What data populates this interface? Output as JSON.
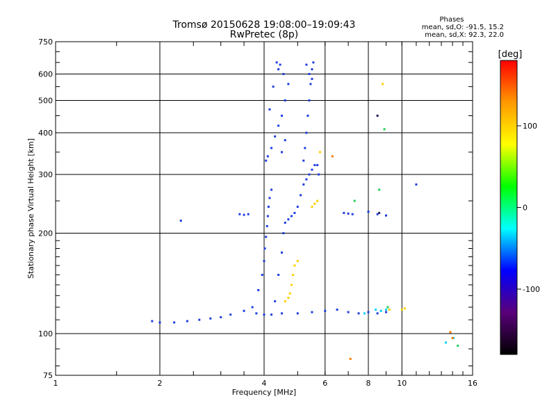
{
  "chart_data": {
    "type": "scatter",
    "title": "Tromsø 20150628 19:08:00–19:09:43",
    "subtitle": "RwPretec (8p)",
    "xlabel": "Frequency [MHz]",
    "ylabel": "Stationary phase Virtual Height [km]",
    "x_scale": "log",
    "y_scale": "log",
    "xlim": [
      1,
      16
    ],
    "ylim": [
      75,
      750
    ],
    "x_ticks": [
      1,
      2,
      4,
      6,
      8,
      10,
      16
    ],
    "y_ticks": [
      75,
      100,
      200,
      300,
      400,
      500,
      600,
      750
    ],
    "grid": true,
    "phases_box": {
      "title": "Phases",
      "line1": "mean, sd,O:  -91.5, 15.2",
      "line2": "mean, sd,X:  92.3, 22.0"
    },
    "colorbar": {
      "label": "[deg]",
      "range": [
        -180,
        180
      ],
      "ticks": [
        100,
        0,
        -100
      ],
      "colormap": [
        "#000000",
        "#5a007a",
        "#0000ff",
        "#00ffff",
        "#00ff00",
        "#ffff00",
        "#ff9900",
        "#ff0000"
      ]
    },
    "series": [
      {
        "color": "#1e3ee0",
        "x": [
          1.9,
          2.0,
          2.2,
          2.4,
          2.6,
          2.8,
          3.0,
          3.2,
          3.5,
          3.8,
          4.0,
          4.2,
          4.5,
          5.0,
          5.5,
          6.0,
          6.5,
          7.0,
          7.5,
          8.0,
          8.5,
          9.0
        ],
        "y": [
          109,
          108,
          108,
          109,
          110,
          111,
          112,
          114,
          117,
          115,
          114,
          114,
          115,
          115,
          116,
          117,
          118,
          116,
          115,
          116,
          115,
          116
        ]
      },
      {
        "color": "#1e3ee0",
        "x": [
          3.7,
          3.85,
          3.95,
          4.0,
          4.02,
          4.05,
          4.08,
          4.1,
          4.12,
          4.15,
          4.2
        ],
        "y": [
          120,
          135,
          150,
          165,
          180,
          195,
          210,
          225,
          240,
          255,
          270
        ]
      },
      {
        "color": "#1e3ee0",
        "x": [
          4.05,
          4.1,
          4.2,
          4.3,
          4.4,
          4.5,
          4.6,
          4.7,
          4.55,
          4.45,
          4.35,
          4.25,
          4.15,
          4.6,
          4.5,
          4.4
        ],
        "y": [
          330,
          340,
          360,
          390,
          420,
          450,
          500,
          560,
          600,
          640,
          650,
          550,
          470,
          380,
          350,
          620
        ]
      },
      {
        "color": "#1e3ee0",
        "x": [
          4.3,
          4.4,
          4.5,
          4.55,
          4.6,
          4.7,
          4.8,
          4.9,
          5.0,
          5.1,
          5.2,
          5.3,
          5.4,
          5.5,
          5.6,
          5.7,
          5.75
        ],
        "y": [
          125,
          150,
          175,
          200,
          215,
          220,
          225,
          230,
          240,
          260,
          280,
          290,
          300,
          310,
          320,
          320,
          300
        ]
      },
      {
        "color": "#1e3ee0",
        "x": [
          5.2,
          5.25,
          5.3,
          5.35,
          5.4,
          5.45,
          5.5,
          5.55,
          5.3,
          5.4,
          5.5
        ],
        "y": [
          330,
          360,
          400,
          450,
          500,
          560,
          620,
          650,
          640,
          600,
          580
        ]
      },
      {
        "color": "#1e3ee0",
        "x": [
          2.3,
          3.4,
          3.5,
          3.6,
          6.8,
          7.0,
          7.2,
          8.0,
          8.5,
          9.0,
          11.0
        ],
        "y": [
          218,
          228,
          227,
          228,
          230,
          229,
          228,
          232,
          228,
          226,
          280
        ]
      },
      {
        "color": "#ffd000",
        "x": [
          4.6,
          4.7,
          4.75,
          4.8,
          4.85,
          4.9,
          5.0,
          5.5,
          5.6,
          5.7,
          5.8,
          8.8,
          9.2,
          10.0,
          10.2
        ],
        "y": [
          125,
          128,
          132,
          140,
          150,
          160,
          165,
          240,
          245,
          250,
          350,
          560,
          118,
          118,
          119
        ]
      },
      {
        "color": "#22cc55",
        "x": [
          7.3,
          8.6,
          8.9,
          9.1,
          14.5
        ],
        "y": [
          250,
          270,
          410,
          120,
          92
        ]
      },
      {
        "color": "#00d0ff",
        "x": [
          7.8,
          8.4,
          8.7,
          9.0,
          13.4,
          14.1
        ],
        "y": [
          115,
          118,
          117,
          118,
          94,
          97
        ]
      },
      {
        "color": "#ff7a00",
        "x": [
          6.3,
          7.1,
          13.8,
          14.0
        ],
        "y": [
          340,
          84,
          101,
          97
        ]
      },
      {
        "color": "#202060",
        "x": [
          8.5,
          8.6
        ],
        "y": [
          450,
          230
        ]
      }
    ]
  }
}
